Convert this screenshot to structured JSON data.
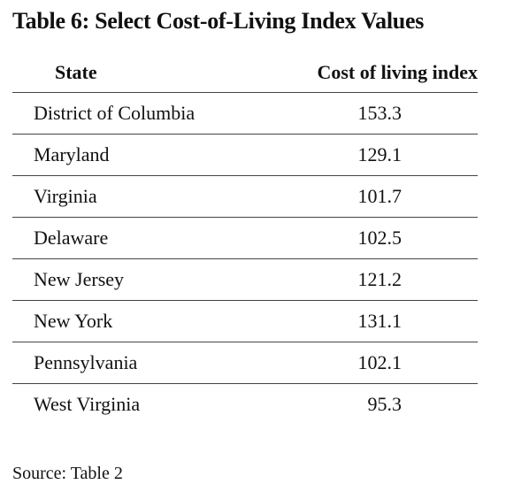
{
  "title": "Table 6: Select Cost-of-Living Index Values",
  "columns": {
    "state": "State",
    "index": "Cost of living index"
  },
  "rows": [
    {
      "state": "District of Columbia",
      "value": "153.3"
    },
    {
      "state": "Maryland",
      "value": "129.1"
    },
    {
      "state": "Virginia",
      "value": "101.7"
    },
    {
      "state": "Delaware",
      "value": "102.5"
    },
    {
      "state": "New Jersey",
      "value": "121.2"
    },
    {
      "state": "New York",
      "value": "131.1"
    },
    {
      "state": "Pennsylvania",
      "value": "102.1"
    },
    {
      "state": "West Virginia",
      "value": "95.3"
    }
  ],
  "source": "Source: Table 2"
}
